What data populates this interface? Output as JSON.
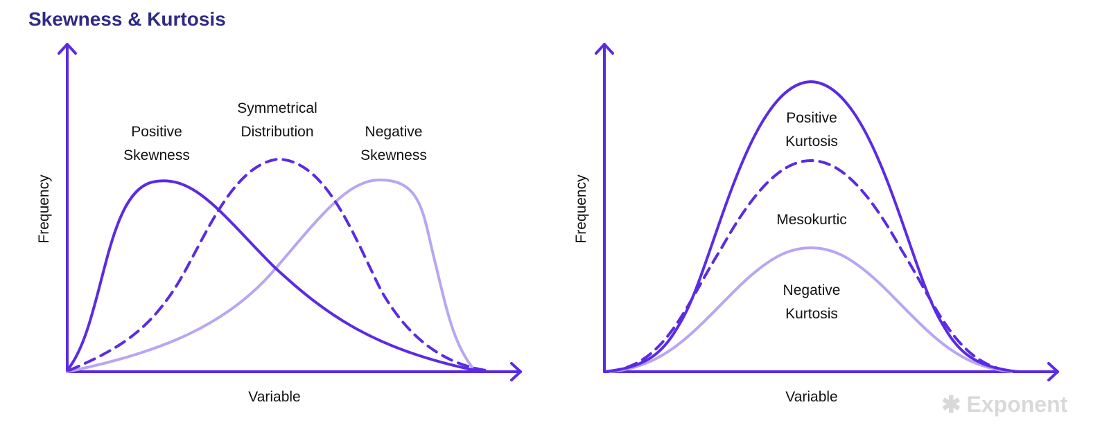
{
  "title": "Skewness & Kurtosis",
  "colors": {
    "title": "#2e2a86",
    "axis": "#5b2be3",
    "strong_curve": "#5b2be3",
    "light_curve": "#b9a6f2",
    "text": "#111111",
    "brand": "#d9d9d9"
  },
  "left_panel": {
    "y_axis_label": "Frequency",
    "x_axis_label": "Variable",
    "curves": [
      {
        "name": "positive-skewness",
        "label_line1": "Positive",
        "label_line2": "Skewness",
        "style": "solid"
      },
      {
        "name": "symmetrical-distribution",
        "label_line1": "Symmetrical",
        "label_line2": "Distribution",
        "style": "dashed"
      },
      {
        "name": "negative-skewness",
        "label_line1": "Negative",
        "label_line2": "Skewness",
        "style": "light"
      }
    ]
  },
  "right_panel": {
    "y_axis_label": "Frequency",
    "x_axis_label": "Variable",
    "curves": [
      {
        "name": "positive-kurtosis",
        "label_line1": "Positive",
        "label_line2": "Kurtosis",
        "style": "solid"
      },
      {
        "name": "mesokurtic",
        "label_line1": "Mesokurtic",
        "style": "dashed"
      },
      {
        "name": "negative-kurtosis",
        "label_line1": "Negative",
        "label_line2": "Kurtosis",
        "style": "light"
      }
    ]
  },
  "brand": {
    "icon": "asterisk-icon",
    "name": "Exponent"
  }
}
